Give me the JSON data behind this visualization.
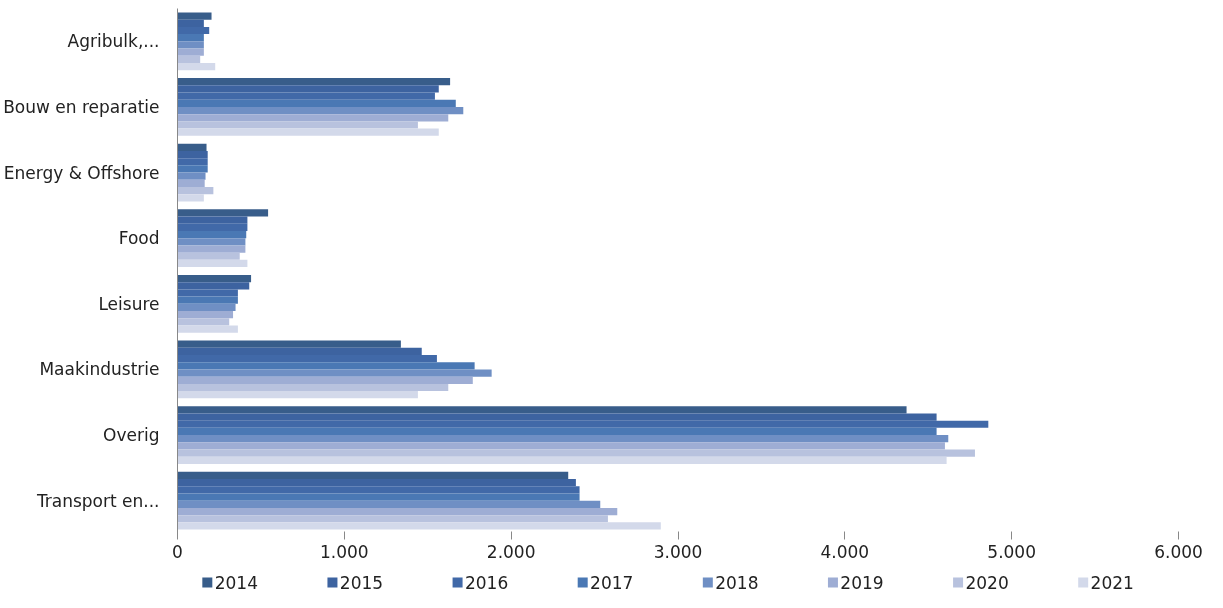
{
  "chart_data": {
    "type": "bar",
    "orientation": "horizontal",
    "categories": [
      "Agribulk,...",
      "Bouw en reparatie",
      "Energy & Offshore",
      "Food",
      "Leisure",
      "Maakindustrie",
      "Overig",
      "Transport en..."
    ],
    "series": [
      {
        "name": "2014",
        "color": "#385d8a",
        "values": [
          204,
          1634,
          174,
          543,
          441,
          1339,
          4370,
          2342
        ]
      },
      {
        "name": "2015",
        "color": "#3d63a0",
        "values": [
          158,
          1566,
          181,
          419,
          430,
          1464,
          4550,
          2388
        ]
      },
      {
        "name": "2016",
        "color": "#4169a8",
        "values": [
          190,
          1543,
          181,
          419,
          362,
          1555,
          4860,
          2410
        ]
      },
      {
        "name": "2017",
        "color": "#4a78b4",
        "values": [
          158,
          1668,
          181,
          412,
          362,
          1781,
          4550,
          2410
        ]
      },
      {
        "name": "2018",
        "color": "#6f8fc4",
        "values": [
          158,
          1713,
          168,
          407,
          348,
          1883,
          4620,
          2534
        ]
      },
      {
        "name": "2019",
        "color": "#9eadd4",
        "values": [
          158,
          1623,
          163,
          407,
          333,
          1770,
          4600,
          2636
        ]
      },
      {
        "name": "2020",
        "color": "#b8c2de",
        "values": [
          136,
          1441,
          215,
          373,
          310,
          1623,
          4780,
          2580
        ]
      },
      {
        "name": "2021",
        "color": "#d3d9ea",
        "values": [
          226,
          1566,
          158,
          419,
          362,
          1441,
          4610,
          2897
        ]
      }
    ],
    "xlim": [
      0,
      6000
    ],
    "xticks": [
      {
        "value": 0,
        "label": "0"
      },
      {
        "value": 1000,
        "label": "1.000"
      },
      {
        "value": 2000,
        "label": "2.000"
      },
      {
        "value": 3000,
        "label": "3.000"
      },
      {
        "value": 4000,
        "label": "4.000"
      },
      {
        "value": 5000,
        "label": "5.000"
      },
      {
        "value": 6000,
        "label": "6.000"
      }
    ],
    "grid": false,
    "legend": "bottom"
  }
}
